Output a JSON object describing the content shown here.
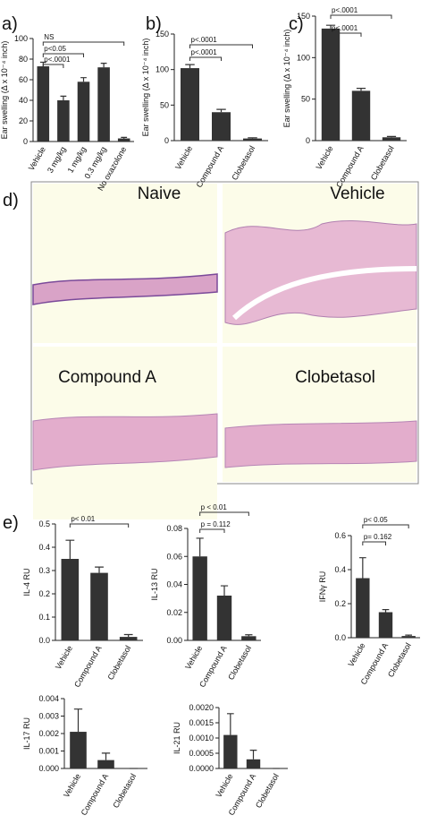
{
  "panel_labels": [
    "a)",
    "b)",
    "c)",
    "d)",
    "e)"
  ],
  "histology": {
    "labels": [
      "Naive",
      "Vehicle",
      "Compound A",
      "Clobetasol"
    ]
  },
  "chart_data": [
    {
      "type": "bar",
      "y_label": "Ear swelling (Δ x 10⁻⁴ inch)",
      "color": "#333333",
      "categories": [
        "Vehicle",
        "3 mg/kg",
        "1 mg/kg",
        "0.3 mg/kg",
        "No oxazolone"
      ],
      "values": [
        73,
        40,
        58,
        72,
        3
      ],
      "errors": [
        4,
        4,
        4,
        4,
        1
      ],
      "ylim": [
        0,
        100
      ],
      "yticks": [
        0,
        20,
        40,
        60,
        80,
        100
      ],
      "annotations": [
        {
          "text": "NS",
          "span": [
            0,
            4
          ]
        },
        {
          "text": "p<0.05",
          "span": [
            0,
            2
          ]
        },
        {
          "text": "p<.0001",
          "span": [
            0,
            1
          ]
        }
      ]
    },
    {
      "type": "bar",
      "y_label": "Ear swelling (Δ x 10⁻⁴ inch)",
      "color": "#333333",
      "categories": [
        "Vehicle",
        "Compound A",
        "Clobetasol"
      ],
      "values": [
        102,
        40,
        3
      ],
      "errors": [
        5,
        4,
        1
      ],
      "ylim": [
        0,
        150
      ],
      "yticks": [
        0,
        50,
        100,
        150
      ],
      "annotations": [
        {
          "text": "p<.0001",
          "span": [
            0,
            2
          ]
        },
        {
          "text": "p<.0001",
          "span": [
            0,
            1
          ]
        }
      ]
    },
    {
      "type": "bar",
      "y_label": "Ear swelling (Δ x 10⁻⁴ inch)",
      "color": "#333333",
      "categories": [
        "Vehicle",
        "Compound A",
        "Clobetasol"
      ],
      "values": [
        135,
        60,
        4
      ],
      "errors": [
        4,
        3,
        1
      ],
      "ylim": [
        0,
        150
      ],
      "yticks": [
        0,
        50,
        100,
        150
      ],
      "annotations": [
        {
          "text": "p<.0001",
          "span": [
            0,
            2
          ]
        },
        {
          "text": "p<.0001",
          "span": [
            0,
            1
          ]
        }
      ]
    },
    {
      "type": "bar",
      "y_label": "IL-4 RU",
      "color": "#333333",
      "categories": [
        "Vehicle",
        "Compound A",
        "Clobetasol"
      ],
      "values": [
        0.35,
        0.29,
        0.015
      ],
      "errors": [
        0.08,
        0.025,
        0.01
      ],
      "ylim": [
        0,
        0.5
      ],
      "yticks": [
        {
          "value": 0,
          "label": "0.0"
        },
        0.1,
        0.2,
        0.3,
        0.4,
        0.5
      ],
      "annotations": [
        {
          "text": "p< 0.01",
          "span": [
            0,
            2
          ]
        }
      ]
    },
    {
      "type": "bar",
      "y_label": "IL-13 RU",
      "color": "#333333",
      "categories": [
        "Vehicle",
        "Compound A",
        "Clobetasol"
      ],
      "values": [
        0.06,
        0.032,
        0.003
      ],
      "errors": [
        0.013,
        0.007,
        0.001
      ],
      "ylim": [
        0,
        0.08
      ],
      "yticks": [
        {
          "value": 0,
          "label": "0.00"
        },
        0.02,
        0.04,
        0.06,
        0.08
      ],
      "annotations": [
        {
          "text": "p < 0.01",
          "span": [
            0,
            2
          ]
        },
        {
          "text": "p = 0.112",
          "span": [
            0,
            1
          ]
        }
      ]
    },
    {
      "type": "bar",
      "y_label": "IFNγ RU",
      "color": "#333333",
      "categories": [
        "Vehicle",
        "Compound A",
        "Clobetasol"
      ],
      "values": [
        0.35,
        0.15,
        0.01
      ],
      "errors": [
        0.12,
        0.015,
        0.005
      ],
      "ylim": [
        0,
        0.6
      ],
      "yticks": [
        {
          "value": 0,
          "label": "0.0"
        },
        0.2,
        0.4,
        0.6
      ],
      "annotations": [
        {
          "text": "p< 0.05",
          "span": [
            0,
            2
          ]
        },
        {
          "text": "p= 0.162",
          "span": [
            0,
            1
          ]
        }
      ]
    },
    {
      "type": "bar",
      "y_label": "IL-17 RU",
      "color": "#333333",
      "categories": [
        "Vehicle",
        "Compound A",
        "Clobetasol"
      ],
      "values": [
        0.0021,
        0.00048,
        0
      ],
      "errors": [
        0.0013,
        0.0004,
        0
      ],
      "ylim": [
        0,
        0.004
      ],
      "yticks": [
        {
          "value": 0,
          "label": "0.000"
        },
        0.001,
        0.002,
        0.003,
        0.004
      ],
      "annotations": []
    },
    {
      "type": "bar",
      "y_label": "IL-21 RU",
      "color": "#333333",
      "categories": [
        "Vehicle",
        "Compound A",
        "Clobetasol"
      ],
      "values": [
        0.0011,
        0.0003,
        0
      ],
      "errors": [
        0.0007,
        0.0003,
        0
      ],
      "ylim": [
        0,
        0.002
      ],
      "yticks": [
        {
          "value": 0,
          "label": "0.0000"
        },
        0.0005,
        {
          "value": 0.001,
          "label": "0.0010"
        },
        0.0015,
        {
          "value": 0.002,
          "label": "0.0020"
        }
      ],
      "annotations": []
    }
  ]
}
